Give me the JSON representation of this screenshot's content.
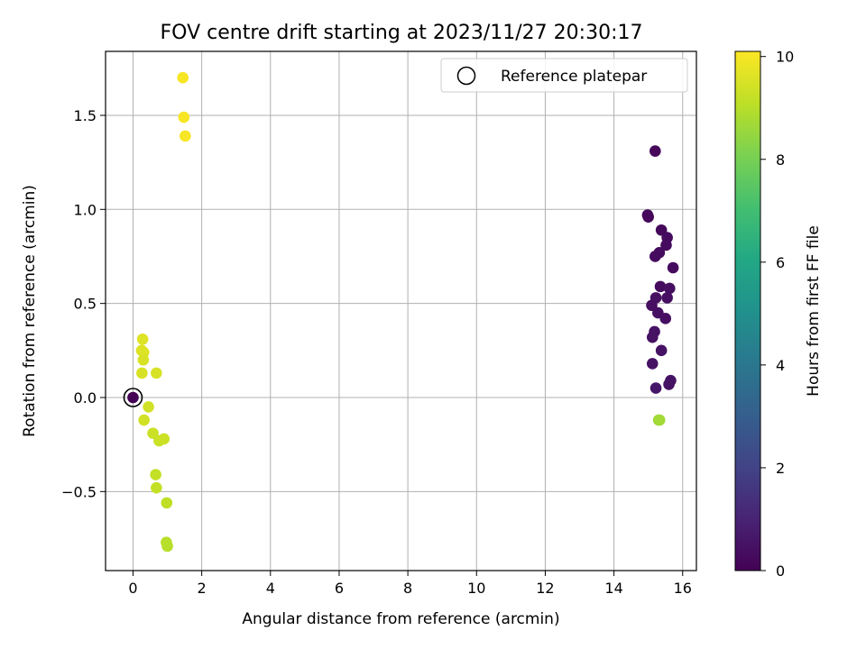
{
  "chart_data": {
    "type": "scatter",
    "title": "FOV centre drift starting at 2023/11/27 20:30:17",
    "xlabel": "Angular distance from reference (arcmin)",
    "ylabel": "Rotation from reference (arcmin)",
    "xlim": [
      -0.8,
      16.4
    ],
    "ylim": [
      -0.92,
      1.84
    ],
    "xticks": [
      0,
      2,
      4,
      6,
      8,
      10,
      12,
      14,
      16
    ],
    "xtick_labels": [
      "0",
      "2",
      "4",
      "6",
      "8",
      "10",
      "12",
      "14",
      "16"
    ],
    "yticks": [
      -0.5,
      0.0,
      0.5,
      1.0,
      1.5
    ],
    "ytick_labels": [
      "−0.5",
      "0.0",
      "0.5",
      "1.0",
      "1.5"
    ],
    "grid": true,
    "legend": {
      "position": "top-right",
      "entries": [
        "Reference platepar"
      ]
    },
    "colorbar": {
      "label": "Hours from first FF file",
      "range": [
        0,
        10.1
      ],
      "ticks": [
        0,
        2,
        4,
        6,
        8,
        10
      ],
      "tick_labels": [
        "0",
        "2",
        "4",
        "6",
        "8",
        "10"
      ],
      "colormap": "viridis"
    },
    "reference": {
      "x": 0,
      "y": 0
    },
    "points": [
      {
        "x": 1.45,
        "y": 1.7,
        "hours": 10.0
      },
      {
        "x": 1.48,
        "y": 1.49,
        "hours": 10.0
      },
      {
        "x": 1.52,
        "y": 1.39,
        "hours": 10.0
      },
      {
        "x": 0.28,
        "y": 0.31,
        "hours": 9.6
      },
      {
        "x": 0.25,
        "y": 0.25,
        "hours": 9.6
      },
      {
        "x": 0.31,
        "y": 0.24,
        "hours": 9.6
      },
      {
        "x": 0.3,
        "y": 0.2,
        "hours": 9.5
      },
      {
        "x": 0.26,
        "y": 0.13,
        "hours": 9.5
      },
      {
        "x": 0.68,
        "y": 0.13,
        "hours": 9.5
      },
      {
        "x": 0.0,
        "y": 0.0,
        "hours": 0.0
      },
      {
        "x": 0.45,
        "y": -0.05,
        "hours": 9.4
      },
      {
        "x": 0.32,
        "y": -0.12,
        "hours": 9.4
      },
      {
        "x": 0.58,
        "y": -0.19,
        "hours": 9.3
      },
      {
        "x": 0.9,
        "y": -0.22,
        "hours": 9.3
      },
      {
        "x": 0.76,
        "y": -0.23,
        "hours": 9.3
      },
      {
        "x": 0.66,
        "y": -0.41,
        "hours": 9.2
      },
      {
        "x": 0.68,
        "y": -0.48,
        "hours": 9.2
      },
      {
        "x": 0.98,
        "y": -0.56,
        "hours": 9.1
      },
      {
        "x": 0.97,
        "y": -0.77,
        "hours": 9.0
      },
      {
        "x": 1.0,
        "y": -0.79,
        "hours": 9.0
      },
      {
        "x": 15.2,
        "y": 1.31,
        "hours": 0.2
      },
      {
        "x": 14.98,
        "y": 0.97,
        "hours": 0.2
      },
      {
        "x": 15.0,
        "y": 0.96,
        "hours": 0.2
      },
      {
        "x": 15.38,
        "y": 0.89,
        "hours": 0.2
      },
      {
        "x": 15.55,
        "y": 0.85,
        "hours": 0.3
      },
      {
        "x": 15.52,
        "y": 0.81,
        "hours": 0.3
      },
      {
        "x": 15.32,
        "y": 0.77,
        "hours": 0.3
      },
      {
        "x": 15.2,
        "y": 0.75,
        "hours": 0.3
      },
      {
        "x": 15.72,
        "y": 0.69,
        "hours": 0.3
      },
      {
        "x": 15.35,
        "y": 0.59,
        "hours": 0.3
      },
      {
        "x": 15.62,
        "y": 0.58,
        "hours": 0.4
      },
      {
        "x": 15.22,
        "y": 0.53,
        "hours": 0.4
      },
      {
        "x": 15.55,
        "y": 0.53,
        "hours": 0.4
      },
      {
        "x": 15.1,
        "y": 0.49,
        "hours": 0.4
      },
      {
        "x": 15.28,
        "y": 0.45,
        "hours": 0.4
      },
      {
        "x": 15.5,
        "y": 0.42,
        "hours": 0.4
      },
      {
        "x": 15.18,
        "y": 0.35,
        "hours": 0.5
      },
      {
        "x": 15.12,
        "y": 0.32,
        "hours": 0.5
      },
      {
        "x": 15.38,
        "y": 0.25,
        "hours": 0.5
      },
      {
        "x": 15.12,
        "y": 0.18,
        "hours": 0.5
      },
      {
        "x": 15.65,
        "y": 0.09,
        "hours": 0.5
      },
      {
        "x": 15.6,
        "y": 0.07,
        "hours": 0.5
      },
      {
        "x": 15.22,
        "y": 0.05,
        "hours": 0.6
      },
      {
        "x": 15.3,
        "y": -0.12,
        "hours": 8.6
      },
      {
        "x": 15.33,
        "y": -0.12,
        "hours": 8.7
      }
    ]
  }
}
